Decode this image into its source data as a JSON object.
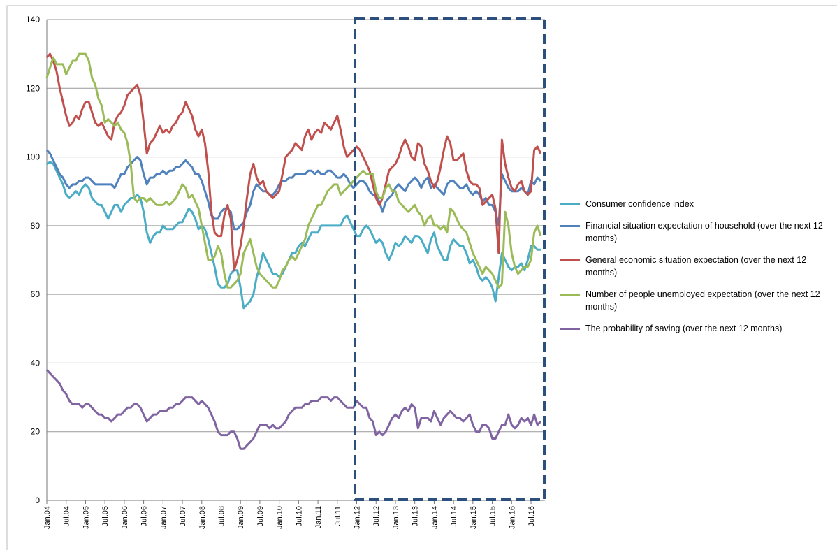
{
  "chart_data": {
    "type": "line",
    "categories": [
      "Jan.04",
      null,
      null,
      null,
      null,
      null,
      "Jul.04",
      null,
      null,
      null,
      null,
      null,
      "Jan.05",
      null,
      null,
      null,
      null,
      null,
      "Jul.05",
      null,
      null,
      null,
      null,
      null,
      "Jan.06",
      null,
      null,
      null,
      null,
      null,
      "Jul.06",
      null,
      null,
      null,
      null,
      null,
      "Jan.07",
      null,
      null,
      null,
      null,
      null,
      "Jul.07",
      null,
      null,
      null,
      null,
      null,
      "Jan.08",
      null,
      null,
      null,
      null,
      null,
      "Jul.08",
      null,
      null,
      null,
      null,
      null,
      "Jan.09",
      null,
      null,
      null,
      null,
      null,
      "Jul.09",
      null,
      null,
      null,
      null,
      null,
      "Jan.10",
      null,
      null,
      null,
      null,
      null,
      "Jul.10",
      null,
      null,
      null,
      null,
      null,
      "Jan.11",
      null,
      null,
      null,
      null,
      null,
      "Jul.11",
      null,
      null,
      null,
      null,
      null,
      "Jan.12",
      null,
      null,
      null,
      null,
      null,
      "Jul.12",
      null,
      null,
      null,
      null,
      null,
      "Jan.13",
      null,
      null,
      null,
      null,
      null,
      "Jul.13",
      null,
      null,
      null,
      null,
      null,
      "Jan.14",
      null,
      null,
      null,
      null,
      null,
      "Jul.14",
      null,
      null,
      null,
      null,
      null,
      "Jan.15",
      null,
      null,
      null,
      null,
      null,
      "Jul.15",
      null,
      null,
      null,
      null,
      null,
      "Jan.16",
      null,
      null,
      null,
      null,
      null,
      "Jul.16",
      null,
      null,
      null
    ],
    "series": [
      {
        "name": "Consumer confidence index",
        "color": "#4bacc6",
        "values": [
          98,
          98.5,
          98,
          96,
          94,
          92,
          89,
          88,
          89,
          90,
          89,
          91,
          92,
          91,
          88,
          87,
          86,
          86,
          84,
          82,
          84,
          86,
          86,
          84,
          86,
          87,
          88,
          88,
          89,
          88,
          84,
          78,
          75,
          77,
          78,
          78,
          80,
          79,
          79,
          79,
          80,
          81,
          81,
          83,
          85,
          84,
          82,
          79,
          80,
          79,
          76,
          72,
          68,
          63,
          62,
          62,
          63,
          66,
          67,
          67,
          62,
          56,
          57,
          58,
          60,
          65,
          68,
          72,
          70,
          68,
          66,
          66,
          65,
          66,
          68,
          70,
          72,
          72,
          74,
          75,
          74,
          76,
          78,
          78,
          78,
          80,
          80,
          80,
          80,
          80,
          80,
          80,
          82,
          83,
          81,
          79,
          77,
          77,
          79,
          80,
          79,
          77,
          75,
          76,
          75,
          72,
          70,
          72,
          75,
          74,
          75,
          77,
          76,
          75,
          77,
          77,
          76,
          74,
          72,
          76,
          78,
          74,
          72,
          70,
          70,
          74,
          76,
          75,
          74,
          74,
          72,
          69,
          70,
          68,
          65,
          64,
          65,
          64,
          62,
          58,
          65,
          72,
          70,
          68,
          67,
          68,
          68,
          69,
          67,
          70,
          74,
          74,
          73,
          73
        ]
      },
      {
        "name": "Financial situation expectation of household  (over the next 12 months)",
        "color": "#4f81bd",
        "values": [
          102,
          101,
          99,
          97,
          95,
          94,
          92,
          91,
          92,
          92,
          93,
          93,
          94,
          94,
          93,
          92,
          92,
          92,
          92,
          92,
          92,
          91,
          93,
          95,
          95,
          97,
          98,
          99,
          100,
          99,
          95,
          92,
          94,
          94,
          95,
          95,
          96,
          95,
          96,
          96,
          97,
          97,
          98,
          99,
          98,
          97,
          95,
          95,
          93,
          90,
          87,
          83,
          82,
          82,
          84,
          85,
          85,
          84,
          79,
          79,
          80,
          81,
          84,
          86,
          90,
          92,
          91,
          90,
          90,
          89,
          89,
          90,
          92,
          93,
          93,
          94,
          94,
          95,
          95,
          95,
          95,
          96,
          96,
          95,
          96,
          95,
          95,
          96,
          96,
          95,
          94,
          94,
          95,
          94,
          92,
          91,
          92,
          93,
          93,
          92,
          90,
          89,
          89,
          87,
          84,
          87,
          88,
          89,
          91,
          92,
          91,
          90,
          92,
          93,
          94,
          93,
          91,
          93,
          94,
          91,
          92,
          91,
          90,
          89,
          92,
          93,
          93,
          92,
          91,
          91,
          92,
          90,
          89,
          90,
          89,
          87,
          88,
          86,
          86,
          84,
          80,
          95,
          93,
          91,
          90,
          90,
          90,
          91,
          90,
          89,
          93,
          92,
          94,
          93
        ]
      },
      {
        "name": "General economic situation expectation (over the next 12 months)",
        "color": "#c0504d",
        "values": [
          129,
          130,
          128,
          125,
          120,
          116,
          112,
          109,
          110,
          112,
          111,
          114,
          116,
          116,
          113,
          110,
          109,
          110,
          108,
          106,
          105,
          110,
          112,
          113,
          115,
          118,
          119,
          120,
          121,
          118,
          110,
          101,
          104,
          105,
          107,
          109,
          107,
          108,
          107,
          109,
          110,
          112,
          113,
          116,
          114,
          112,
          108,
          106,
          108,
          104,
          96,
          84,
          78,
          77,
          77,
          83,
          86,
          82,
          67,
          70,
          74,
          80,
          88,
          95,
          98,
          94,
          92,
          93,
          90,
          89,
          88,
          89,
          90,
          95,
          100,
          101,
          102,
          104,
          103,
          102,
          106,
          108,
          105,
          107,
          108,
          107,
          110,
          109,
          108,
          110,
          112,
          108,
          103,
          100,
          101,
          102,
          103,
          102,
          100,
          98,
          96,
          92,
          88,
          86,
          88,
          92,
          96,
          97,
          98,
          100,
          103,
          105,
          103,
          100,
          99,
          104,
          103,
          98,
          96,
          93,
          91,
          93,
          97,
          102,
          106,
          104,
          99,
          99,
          100,
          101,
          96,
          93,
          92,
          92,
          91,
          86,
          87,
          88,
          89,
          85,
          72,
          105,
          98,
          94,
          91,
          90,
          92,
          93,
          90,
          89,
          90,
          102,
          103,
          101
        ]
      },
      {
        "name": "Number of people unemployed expectation (over the next 12 months)",
        "color": "#9bbb59",
        "values": [
          123,
          126,
          129,
          127,
          127,
          127,
          124,
          126,
          128,
          128,
          130,
          130,
          130,
          128,
          123,
          121,
          117,
          115,
          110,
          111,
          110,
          109,
          110,
          108,
          107,
          104,
          98,
          88,
          87,
          88,
          88,
          87,
          88,
          87,
          86,
          86,
          86,
          87,
          86,
          87,
          88,
          90,
          92,
          91,
          88,
          89,
          87,
          85,
          80,
          75,
          70,
          70,
          71,
          74,
          72,
          66,
          62,
          62,
          63,
          64,
          66,
          72,
          74,
          76,
          72,
          68,
          66,
          65,
          64,
          63,
          62,
          62,
          64,
          67,
          68,
          70,
          71,
          70,
          72,
          74,
          76,
          80,
          82,
          84,
          86,
          86,
          88,
          90,
          91,
          92,
          92,
          89,
          90,
          91,
          92,
          93,
          94,
          95,
          96,
          95,
          95,
          95,
          90,
          88,
          88,
          91,
          92,
          90,
          90,
          87,
          86,
          85,
          84,
          85,
          86,
          84,
          83,
          80,
          82,
          83,
          80,
          80,
          79,
          80,
          78,
          85,
          84,
          82,
          80,
          79,
          78,
          75,
          72,
          70,
          68,
          66,
          68,
          67,
          66,
          64,
          62,
          63,
          84,
          80,
          72,
          68,
          66,
          67,
          68,
          68,
          70,
          78,
          80,
          77
        ]
      },
      {
        "name": "The probability of saving (over the next 12 months)",
        "color": "#8064a2",
        "values": [
          38,
          37,
          36,
          35,
          34,
          32,
          31,
          29,
          28,
          28,
          28,
          27,
          28,
          28,
          27,
          26,
          25,
          25,
          24,
          24,
          23,
          24,
          25,
          25,
          26,
          27,
          27,
          28,
          28,
          27,
          25,
          23,
          24,
          25,
          25,
          26,
          26,
          26,
          27,
          27,
          28,
          28,
          29,
          30,
          30,
          30,
          29,
          28,
          29,
          28,
          27,
          25,
          23,
          20,
          19,
          19,
          19,
          20,
          20,
          18,
          15,
          15,
          16,
          17,
          18,
          20,
          22,
          22,
          22,
          21,
          22,
          21,
          21,
          22,
          23,
          25,
          26,
          27,
          27,
          27,
          28,
          28,
          29,
          29,
          29,
          30,
          30,
          30,
          29,
          30,
          30,
          29,
          28,
          27,
          27,
          27,
          29,
          28,
          27,
          27,
          24,
          23,
          19,
          20,
          19,
          20,
          22,
          24,
          25,
          24,
          26,
          27,
          26,
          28,
          27,
          21,
          24,
          24,
          24,
          23,
          26,
          24,
          22,
          24,
          25,
          26,
          25,
          24,
          24,
          23,
          24,
          25,
          22,
          20,
          20,
          22,
          22,
          21,
          18,
          18,
          20,
          22,
          22,
          25,
          22,
          21,
          22,
          24,
          23,
          24,
          22,
          25,
          22,
          23
        ]
      }
    ],
    "ylim": [
      0,
      140
    ],
    "yticks": [
      0,
      20,
      40,
      60,
      80,
      100,
      120,
      140
    ],
    "grid": true
  }
}
